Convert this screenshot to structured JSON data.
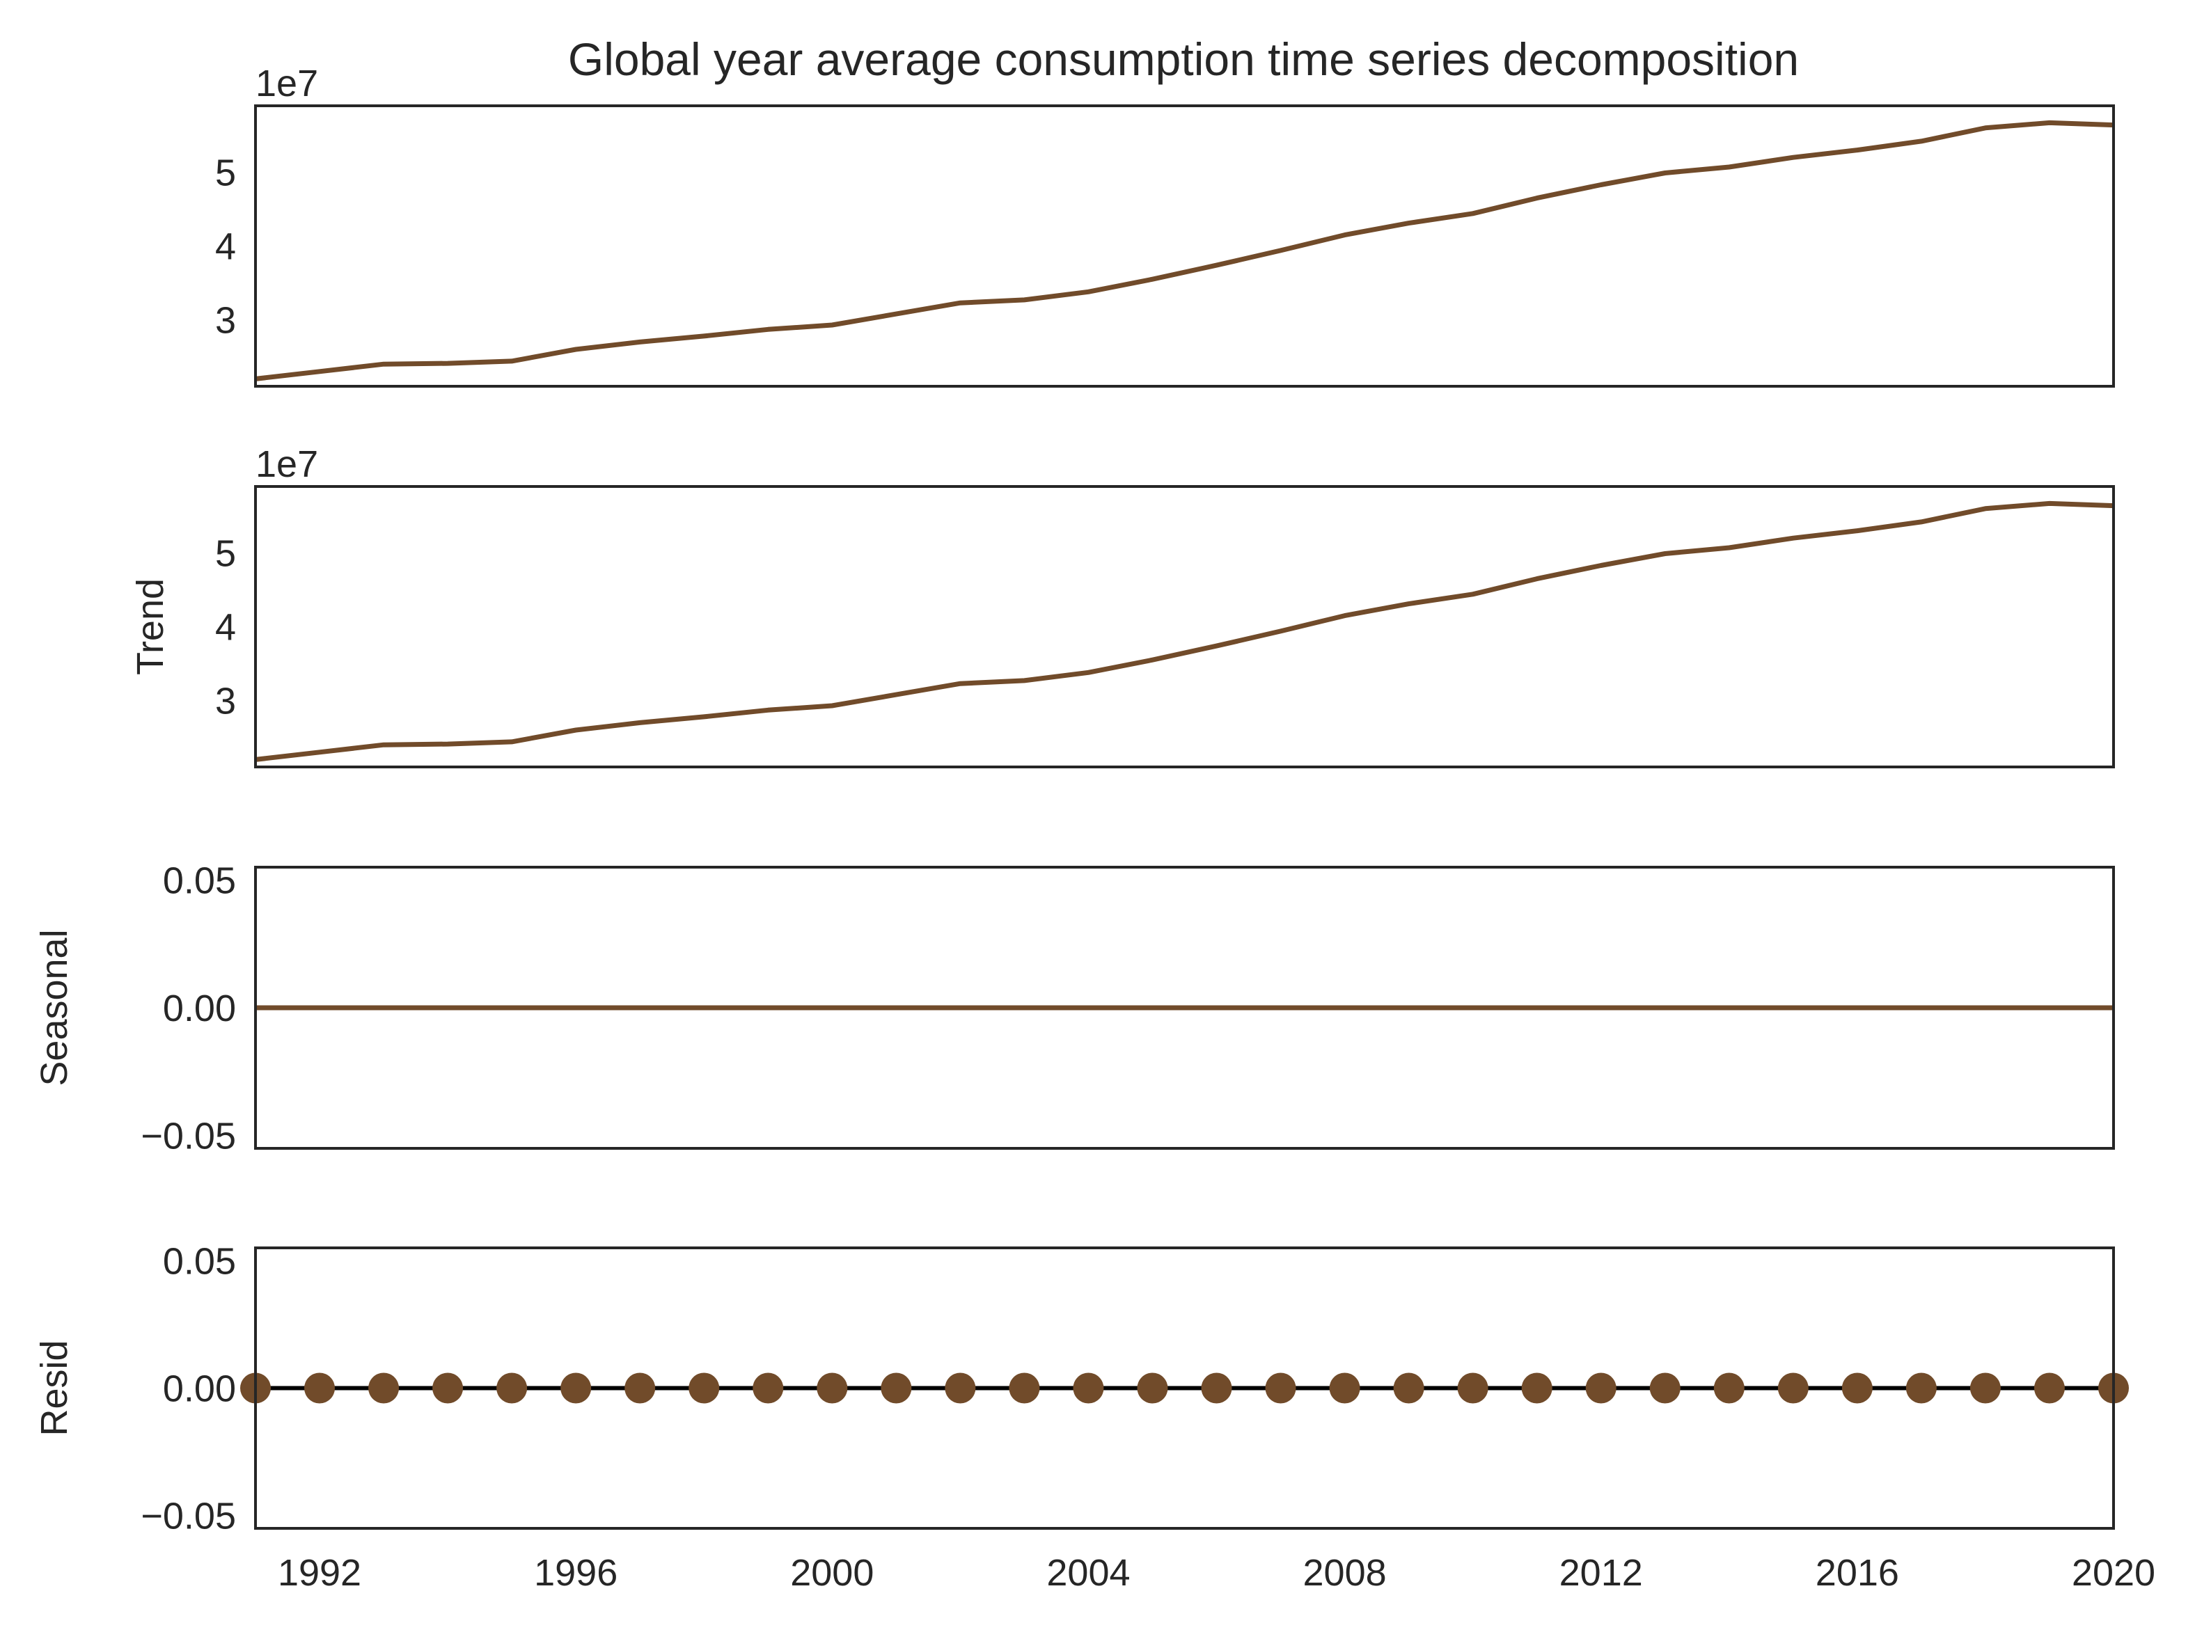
{
  "chart_data": {
    "type": "line",
    "title": "Global year average consumption time series decomposition",
    "x": [
      1991,
      1992,
      1993,
      1994,
      1995,
      1996,
      1997,
      1998,
      1999,
      2000,
      2001,
      2002,
      2003,
      2004,
      2005,
      2006,
      2007,
      2008,
      2009,
      2010,
      2011,
      2012,
      2013,
      2014,
      2015,
      2016,
      2017,
      2018,
      2019,
      2020
    ],
    "xlim": [
      1991,
      2020
    ],
    "xticks": [
      "1992",
      "1996",
      "2000",
      "2004",
      "2008",
      "2012",
      "2016",
      "2020"
    ],
    "line_color": "#714B2A",
    "zero_line_color": "#000000",
    "panels": [
      {
        "name": "observed",
        "ylabel": "",
        "exponent": "1e7",
        "type": "line",
        "ylim": [
          2.1,
          5.9
        ],
        "yticks": [
          "3",
          "4",
          "5"
        ],
        "values": [
          2.2,
          2.3,
          2.4,
          2.41,
          2.44,
          2.6,
          2.7,
          2.78,
          2.87,
          2.93,
          3.08,
          3.23,
          3.27,
          3.38,
          3.55,
          3.74,
          3.94,
          4.15,
          4.31,
          4.44,
          4.65,
          4.83,
          4.99,
          5.07,
          5.2,
          5.3,
          5.42,
          5.6,
          5.67,
          5.64
        ]
      },
      {
        "name": "trend",
        "ylabel": "Trend",
        "exponent": "1e7",
        "type": "line",
        "ylim": [
          2.1,
          5.9
        ],
        "yticks": [
          "3",
          "4",
          "5"
        ],
        "values": [
          2.2,
          2.3,
          2.4,
          2.41,
          2.44,
          2.6,
          2.7,
          2.78,
          2.87,
          2.93,
          3.08,
          3.23,
          3.27,
          3.38,
          3.55,
          3.74,
          3.94,
          4.15,
          4.31,
          4.44,
          4.65,
          4.83,
          4.99,
          5.07,
          5.2,
          5.3,
          5.42,
          5.6,
          5.67,
          5.64
        ]
      },
      {
        "name": "seasonal",
        "ylabel": "Seasonal",
        "exponent": "",
        "type": "line",
        "ylim": [
          -0.055,
          0.055
        ],
        "yticks": [
          "0.05",
          "0.00",
          "−0.05"
        ],
        "values": [
          0,
          0,
          0,
          0,
          0,
          0,
          0,
          0,
          0,
          0,
          0,
          0,
          0,
          0,
          0,
          0,
          0,
          0,
          0,
          0,
          0,
          0,
          0,
          0,
          0,
          0,
          0,
          0,
          0,
          0
        ]
      },
      {
        "name": "resid",
        "ylabel": "Resid",
        "exponent": "",
        "type": "scatter",
        "ylim": [
          -0.055,
          0.055
        ],
        "yticks": [
          "0.05",
          "0.00",
          "−0.05"
        ],
        "values": [
          0,
          0,
          0,
          0,
          0,
          0,
          0,
          0,
          0,
          0,
          0,
          0,
          0,
          0,
          0,
          0,
          0,
          0,
          0,
          0,
          0,
          0,
          0,
          0,
          0,
          0,
          0,
          0,
          0,
          0
        ]
      }
    ]
  }
}
